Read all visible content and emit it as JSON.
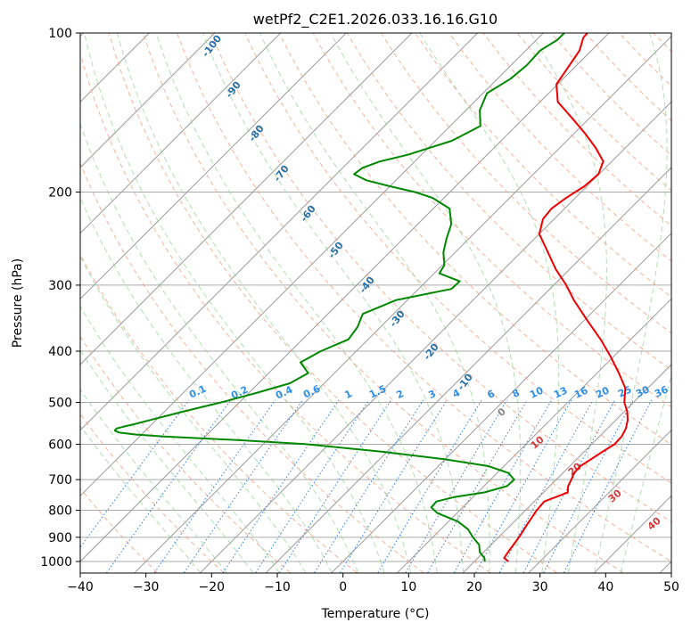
{
  "chart_data": {
    "type": "line",
    "chart_kind": "skew-t log-p diagram",
    "title": "wetPf2_C2E1.2026.033.16.16.G10",
    "xlabel": "Temperature (°C)",
    "ylabel": "Pressure (hPa)",
    "xlim": [
      -40,
      50
    ],
    "ylim": [
      1050,
      100
    ],
    "y_scale": "log",
    "grid": true,
    "x_ticks": [
      -40,
      -30,
      -20,
      -10,
      0,
      10,
      20,
      30,
      40,
      50
    ],
    "x_tick_labels": [
      "−40",
      "−30",
      "−20",
      "−10",
      "0",
      "10",
      "20",
      "30",
      "40",
      "50"
    ],
    "y_ticks": [
      100,
      200,
      300,
      400,
      500,
      600,
      700,
      800,
      900,
      1000
    ],
    "y_tick_labels": [
      "100",
      "200",
      "300",
      "400",
      "500",
      "600",
      "700",
      "800",
      "900",
      "1000"
    ],
    "series": [
      {
        "color": "#ee0000",
        "p": [
          1000,
          985,
          950,
          900,
          850,
          800,
          770,
          740,
          720,
          700,
          680,
          660,
          640,
          620,
          600,
          580,
          560,
          540,
          520,
          500,
          470,
          440,
          410,
          380,
          350,
          320,
          300,
          280,
          260,
          240,
          225,
          215,
          205,
          195,
          185,
          175,
          165,
          155,
          145,
          135,
          125,
          115,
          108,
          102,
          100
        ],
        "t": [
          25.2,
          24.0,
          23.6,
          23.1,
          22.4,
          21.7,
          21.5,
          23.7,
          22.8,
          22.3,
          21.7,
          21.6,
          22.2,
          22.8,
          23.5,
          23.4,
          22.8,
          21.8,
          20.4,
          18.6,
          16.6,
          13.3,
          9.6,
          5.4,
          0.5,
          -4.7,
          -8.1,
          -12.1,
          -15.9,
          -20.0,
          -21.7,
          -22.0,
          -21.4,
          -20.4,
          -20.1,
          -21.3,
          -24.5,
          -28.3,
          -32.6,
          -37.3,
          -40.2,
          -41.1,
          -41.8,
          -43.2,
          -43.3
        ]
      },
      {
        "color": "#008800",
        "p": [
          1000,
          985,
          960,
          930,
          900,
          870,
          840,
          810,
          790,
          770,
          755,
          740,
          720,
          700,
          680,
          660,
          640,
          620,
          600,
          590,
          580,
          575,
          570,
          565,
          560,
          555,
          550,
          540,
          530,
          520,
          500,
          480,
          460,
          440,
          420,
          400,
          380,
          360,
          340,
          320,
          305,
          295,
          285,
          275,
          260,
          245,
          230,
          215,
          205,
          200,
          195,
          190,
          185,
          180,
          175,
          170,
          160,
          150,
          140,
          130,
          122,
          115,
          108,
          103,
          100
        ],
        "t": [
          21.6,
          21.0,
          19.4,
          18.2,
          16.1,
          14.2,
          11.4,
          7.0,
          5.2,
          5.1,
          7.2,
          11.0,
          13.5,
          13.6,
          11.7,
          7.6,
          -0.3,
          -10.7,
          -23.4,
          -33.6,
          -46.3,
          -51.0,
          -53.8,
          -54.7,
          -54.7,
          -53.8,
          -52.7,
          -50.9,
          -49.0,
          -47.1,
          -42.8,
          -38.9,
          -35.2,
          -34.0,
          -36.8,
          -35.4,
          -33.0,
          -33.5,
          -34.7,
          -31.7,
          -25.0,
          -24.9,
          -29.2,
          -29.7,
          -31.8,
          -33.4,
          -34.9,
          -37.5,
          -41.8,
          -45.3,
          -50.0,
          -54.5,
          -57.3,
          -57.0,
          -55.3,
          -52.1,
          -47.5,
          -45.4,
          -47.9,
          -49.4,
          -48.0,
          -47.6,
          -47.8,
          -46.8,
          -46.8
        ]
      }
    ],
    "dry_adiabat_labels": [
      "-100",
      "-90",
      "-80",
      "-70",
      "-60",
      "-50",
      "-40",
      "-30",
      "-20",
      "-10"
    ],
    "moist_adiabat_labels": [
      "0",
      "10",
      "20",
      "30",
      "40"
    ],
    "mixing_ratio_labels": [
      "0.1",
      "0.2",
      "0.4",
      "0.6",
      "1",
      "1.5",
      "2",
      "3",
      "4",
      "6",
      "8",
      "10",
      "13",
      "16",
      "20",
      "25",
      "30",
      "36"
    ]
  }
}
